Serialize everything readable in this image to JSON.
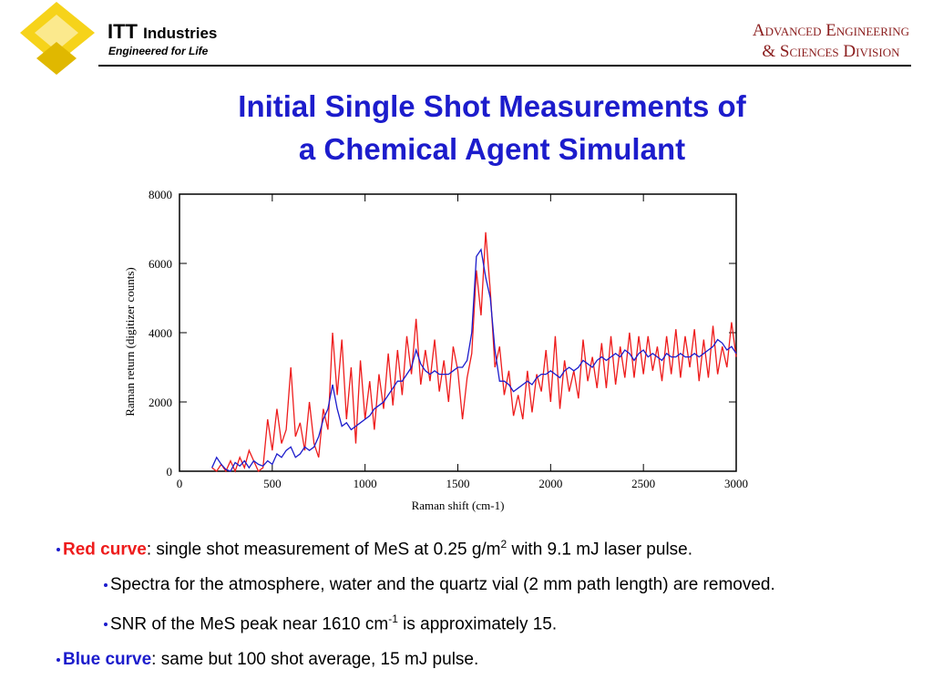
{
  "header": {
    "company": "ITT",
    "company_suffix": "Industries",
    "tagline": "Engineered for Life",
    "division_line1": "Advanced Engineering",
    "division_line2": "& Sciences Division"
  },
  "title_line1": "Initial Single Shot Measurements of",
  "title_line2": "a Chemical Agent Simulant",
  "chart_data": {
    "type": "line",
    "xlabel": "Raman shift (cm-1)",
    "ylabel": "Raman return (digitizer counts)",
    "xlim": [
      0,
      3000
    ],
    "ylim": [
      0,
      8000
    ],
    "xticks": [
      0,
      500,
      1000,
      1500,
      2000,
      2500,
      3000
    ],
    "yticks": [
      0,
      2000,
      4000,
      6000,
      8000
    ],
    "x": [
      175,
      200,
      225,
      250,
      275,
      300,
      325,
      350,
      375,
      400,
      425,
      450,
      475,
      500,
      525,
      550,
      575,
      600,
      625,
      650,
      675,
      700,
      725,
      750,
      775,
      800,
      825,
      850,
      875,
      900,
      925,
      950,
      975,
      1000,
      1025,
      1050,
      1075,
      1100,
      1125,
      1150,
      1175,
      1200,
      1225,
      1250,
      1275,
      1300,
      1325,
      1350,
      1375,
      1400,
      1425,
      1450,
      1475,
      1500,
      1525,
      1550,
      1575,
      1600,
      1625,
      1650,
      1675,
      1700,
      1725,
      1750,
      1775,
      1800,
      1825,
      1850,
      1875,
      1900,
      1925,
      1950,
      1975,
      2000,
      2025,
      2050,
      2075,
      2100,
      2125,
      2150,
      2175,
      2200,
      2225,
      2250,
      2275,
      2300,
      2325,
      2350,
      2375,
      2400,
      2425,
      2450,
      2475,
      2500,
      2525,
      2550,
      2575,
      2600,
      2625,
      2650,
      2675,
      2700,
      2725,
      2750,
      2775,
      2800,
      2825,
      2850,
      2875,
      2900,
      2925,
      2950,
      2975,
      3000
    ],
    "series": [
      {
        "color": "#ee1c1c",
        "values": [
          100,
          0,
          200,
          0,
          300,
          0,
          400,
          100,
          600,
          300,
          0,
          100,
          1500,
          600,
          1800,
          800,
          1200,
          3000,
          1000,
          1400,
          600,
          2000,
          800,
          400,
          1800,
          1200,
          4000,
          2200,
          3800,
          1500,
          3000,
          800,
          3200,
          1500,
          2600,
          1200,
          2800,
          1800,
          3400,
          1900,
          3500,
          2200,
          3900,
          2800,
          4400,
          2500,
          3500,
          2600,
          3800,
          2300,
          3200,
          2000,
          3600,
          2900,
          1500,
          2700,
          3400,
          5800,
          4500,
          6900,
          5200,
          3000,
          3600,
          2200,
          2900,
          1600,
          2200,
          1500,
          2900,
          1700,
          2800,
          2300,
          3500,
          2000,
          3900,
          1800,
          3200,
          2300,
          2900,
          2100,
          3800,
          2600,
          3300,
          2400,
          3700,
          2400,
          3900,
          2500,
          3600,
          2700,
          4000,
          2700,
          3900,
          2800,
          3900,
          2900,
          3600,
          2600,
          3900,
          2800,
          4100,
          2700,
          3900,
          3000,
          4100,
          2600,
          3800,
          2700,
          4200,
          2800,
          3600,
          3000,
          4300,
          3300
        ]
      },
      {
        "color": "#1c1ccc",
        "values": [
          100,
          400,
          200,
          50,
          0,
          250,
          150,
          300,
          100,
          300,
          200,
          150,
          300,
          200,
          500,
          400,
          600,
          700,
          400,
          500,
          700,
          600,
          700,
          1000,
          1500,
          1800,
          2500,
          1800,
          1300,
          1400,
          1200,
          1300,
          1400,
          1500,
          1600,
          1800,
          1900,
          2000,
          2200,
          2400,
          2600,
          2600,
          2800,
          3000,
          3500,
          3100,
          2900,
          2800,
          2900,
          2800,
          2800,
          2800,
          2900,
          3000,
          3000,
          3200,
          4000,
          6200,
          6400,
          5600,
          5000,
          3500,
          2600,
          2600,
          2500,
          2300,
          2400,
          2500,
          2600,
          2500,
          2700,
          2800,
          2800,
          2900,
          2800,
          2700,
          2900,
          3000,
          2900,
          3000,
          3200,
          3100,
          3000,
          3200,
          3300,
          3200,
          3300,
          3400,
          3300,
          3500,
          3400,
          3200,
          3400,
          3500,
          3300,
          3400,
          3300,
          3200,
          3400,
          3300,
          3300,
          3400,
          3300,
          3300,
          3400,
          3300,
          3400,
          3500,
          3600,
          3800,
          3700,
          3500,
          3600,
          3400
        ]
      }
    ]
  },
  "bullets": [
    {
      "lead": "Red curve",
      "text": ": single shot measurement of MeS at 0.25 g/m",
      "sup": "2",
      "tail": " with 9.1 mJ laser pulse."
    },
    {
      "text": "Spectra for the atmosphere, water and the quartz vial (2 mm path length) are removed."
    },
    {
      "text": "SNR of the MeS peak near 1610 cm",
      "sup": "-1",
      "tail": " is approximately 15."
    },
    {
      "lead": "Blue curve",
      "text": ": same but 100 shot average, 15 mJ pulse."
    }
  ]
}
